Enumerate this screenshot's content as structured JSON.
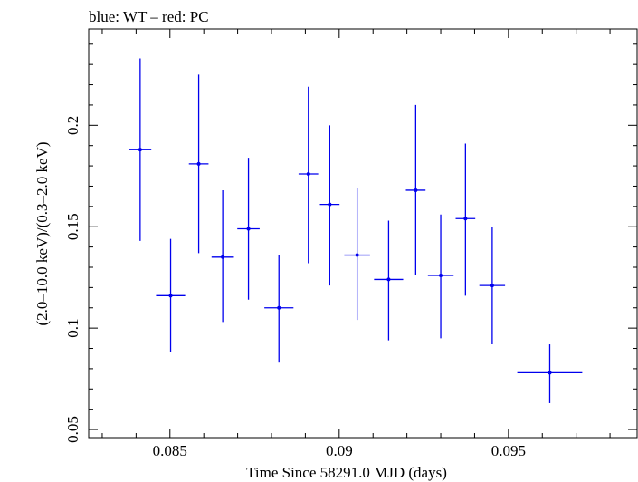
{
  "chart_data": {
    "type": "scatter",
    "title": "blue: WT – red: PC",
    "xlabel": "Time Since 58291.0 MJD (days)",
    "ylabel": "(2.0–10.0 keV)/(0.3–2.0 keV)",
    "xlim": [
      0.0826,
      0.0988
    ],
    "ylim": [
      0.046,
      0.2475
    ],
    "xticks": [
      {
        "value": 0.085,
        "label": "0.085"
      },
      {
        "value": 0.09,
        "label": "0.09"
      },
      {
        "value": 0.095,
        "label": "0.095"
      }
    ],
    "yticks": [
      {
        "value": 0.05,
        "label": "0.05"
      },
      {
        "value": 0.1,
        "label": "0.1"
      },
      {
        "value": 0.15,
        "label": "0.15"
      },
      {
        "value": 0.2,
        "label": "0.2"
      }
    ],
    "grid": false,
    "series": [
      {
        "color": "#0000ee",
        "points": [
          {
            "x": 0.08412,
            "xerr": 0.00033,
            "y": 0.188,
            "ylo": 0.143,
            "yhi": 0.233
          },
          {
            "x": 0.08502,
            "xerr": 0.00043,
            "y": 0.116,
            "ylo": 0.088,
            "yhi": 0.144
          },
          {
            "x": 0.08585,
            "xerr": 0.00029,
            "y": 0.181,
            "ylo": 0.137,
            "yhi": 0.225
          },
          {
            "x": 0.08656,
            "xerr": 0.00033,
            "y": 0.135,
            "ylo": 0.103,
            "yhi": 0.168
          },
          {
            "x": 0.08732,
            "xerr": 0.00033,
            "y": 0.149,
            "ylo": 0.114,
            "yhi": 0.184
          },
          {
            "x": 0.08822,
            "xerr": 0.00043,
            "y": 0.11,
            "ylo": 0.083,
            "yhi": 0.136
          },
          {
            "x": 0.08909,
            "xerr": 0.00029,
            "y": 0.176,
            "ylo": 0.132,
            "yhi": 0.219
          },
          {
            "x": 0.08972,
            "xerr": 0.00029,
            "y": 0.161,
            "ylo": 0.121,
            "yhi": 0.2
          },
          {
            "x": 0.09053,
            "xerr": 0.00038,
            "y": 0.136,
            "ylo": 0.104,
            "yhi": 0.169
          },
          {
            "x": 0.09146,
            "xerr": 0.00043,
            "y": 0.124,
            "ylo": 0.094,
            "yhi": 0.153
          },
          {
            "x": 0.09226,
            "xerr": 0.00029,
            "y": 0.168,
            "ylo": 0.126,
            "yhi": 0.21
          },
          {
            "x": 0.093,
            "xerr": 0.00038,
            "y": 0.126,
            "ylo": 0.095,
            "yhi": 0.156
          },
          {
            "x": 0.09373,
            "xerr": 0.00029,
            "y": 0.154,
            "ylo": 0.116,
            "yhi": 0.191
          },
          {
            "x": 0.09452,
            "xerr": 0.00038,
            "y": 0.121,
            "ylo": 0.092,
            "yhi": 0.15
          },
          {
            "x": 0.09622,
            "xerr": 0.00096,
            "y": 0.078,
            "ylo": 0.063,
            "yhi": 0.092
          }
        ]
      }
    ]
  }
}
